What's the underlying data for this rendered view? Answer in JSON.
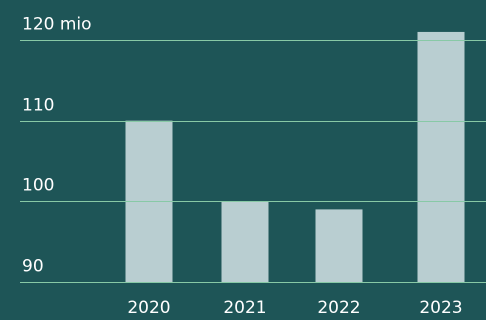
{
  "chart_data": {
    "type": "bar",
    "categories": [
      "2020",
      "2021",
      "2022",
      "2023"
    ],
    "values": [
      110,
      100,
      99,
      121
    ],
    "y_ticks": [
      {
        "value": 90,
        "label": "90"
      },
      {
        "value": 100,
        "label": "100"
      },
      {
        "value": 110,
        "label": "110"
      },
      {
        "value": 120,
        "label": "120 mio"
      }
    ],
    "ylim": [
      90,
      120
    ],
    "grid": true,
    "colors": {
      "background": "#1e5557",
      "bars": "#b9ced1",
      "grid": "#88c9a6",
      "text": "#ffffff"
    }
  }
}
